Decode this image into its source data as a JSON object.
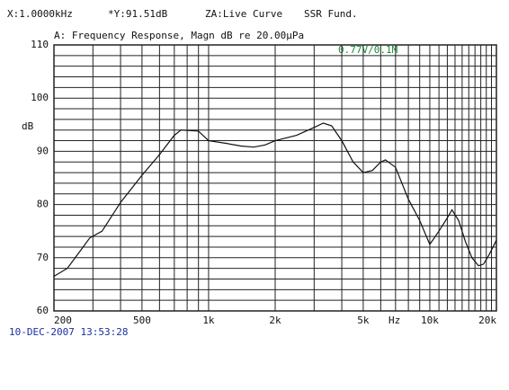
{
  "chart_data": {
    "type": "line",
    "header": [
      "X:1.0000kHz",
      "*Y:91.51dB",
      "ZA:Live Curve",
      "SSR Fund."
    ],
    "title": "A: Frequency Response, Magn dB re 20.00µPa",
    "annotation": "0.77V/0.1M",
    "annotation_color": "#1a8a3a",
    "y_label": "dB",
    "x_unit": "Hz",
    "timestamp": "10-DEC-2007 13:53:28",
    "timestamp_color": "#1a2ea0",
    "x_scale": "log",
    "xlim": [
      200,
      20000
    ],
    "xticks": [
      200,
      500,
      {
        "value": 1000,
        "label": "1k"
      },
      {
        "value": 2000,
        "label": "2k"
      },
      {
        "value": 5000,
        "label": "5k"
      },
      {
        "value": 10000,
        "label": "10k"
      },
      {
        "value": 20000,
        "label": "20k"
      }
    ],
    "x_grid": [
      300,
      400,
      600,
      700,
      800,
      900,
      3000,
      4000,
      6000,
      7000,
      8000,
      9000,
      11000,
      12000,
      13000,
      14000,
      15000,
      16000,
      17000,
      18000,
      19000
    ],
    "ylim": [
      60,
      110
    ],
    "yticks": [
      60,
      70,
      80,
      90,
      100,
      110
    ],
    "y_grid": [
      62,
      64,
      66,
      68,
      72,
      74,
      76,
      78,
      82,
      84,
      86,
      88,
      92,
      94,
      96,
      98,
      102,
      104,
      106,
      108
    ],
    "series": [
      {
        "color": "#111111",
        "x": [
          200,
          230,
          260,
          290,
          330,
          400,
          500,
          600,
          700,
          750,
          900,
          1000,
          1200,
          1400,
          1600,
          1800,
          2000,
          2500,
          3000,
          3300,
          3600,
          4000,
          4500,
          5000,
          5500,
          6000,
          6300,
          7000,
          8000,
          9000,
          10000,
          11000,
          12000,
          12600,
          13500,
          14500,
          15500,
          16600,
          17500,
          18500,
          20000
        ],
        "values": [
          66.5,
          68,
          71,
          73.7,
          75,
          80.4,
          85.5,
          89.4,
          93,
          94,
          93.8,
          92,
          91.5,
          91,
          90.8,
          91.2,
          92,
          93,
          94.5,
          95.3,
          94.8,
          92,
          88,
          86,
          86.4,
          88,
          88.4,
          87,
          81,
          77,
          72.5,
          75,
          77.5,
          79,
          77,
          73,
          70,
          68.5,
          68.8,
          70.5,
          73.3
        ]
      }
    ]
  }
}
